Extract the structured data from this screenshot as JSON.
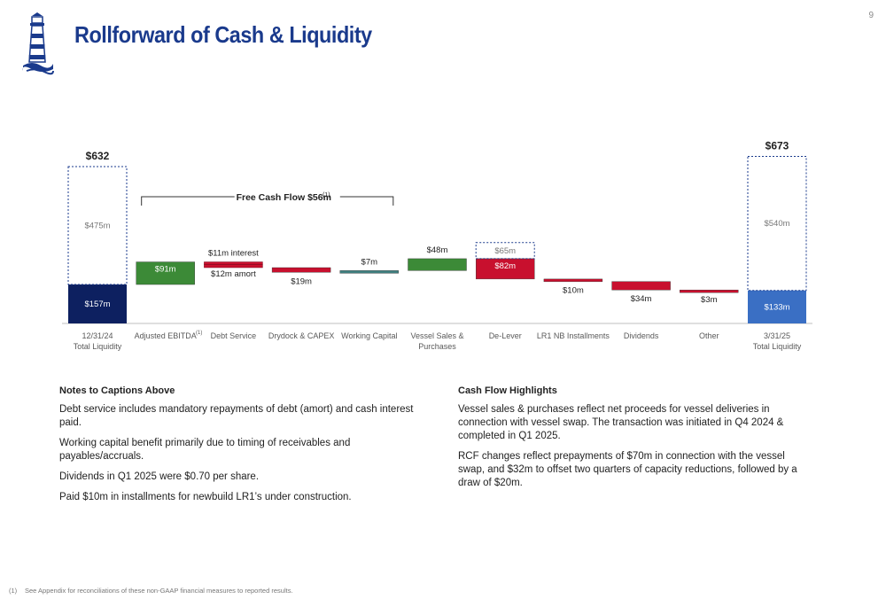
{
  "page_number": "9",
  "title": "Rollforward of Cash & Liquidity",
  "chart_data": {
    "type": "waterfall",
    "unit": "$m",
    "categories": [
      {
        "line1": "12/31/24",
        "line2": "Total Liquidity"
      },
      {
        "line1": "Adjusted EBITDA",
        "sup": "(1)"
      },
      {
        "line1": "Debt Service"
      },
      {
        "line1": "Drydock & CAPEX"
      },
      {
        "line1": "Working Capital"
      },
      {
        "line1": "Vessel Sales &",
        "line2": "Purchases"
      },
      {
        "line1": "De-Lever"
      },
      {
        "line1": "LR1 NB Installments"
      },
      {
        "line1": "Dividends"
      },
      {
        "line1": "Other"
      },
      {
        "line1": "3/31/25",
        "line2": "Total Liquidity"
      }
    ],
    "start": {
      "total": 632,
      "total_label": "$632",
      "cash": 157,
      "cash_label": "$157m",
      "rcf": 475,
      "rcf_label": "$475m"
    },
    "end": {
      "total": 673,
      "total_label": "$673",
      "cash": 133,
      "cash_label": "$133m",
      "rcf": 540,
      "rcf_label": "$540m"
    },
    "steps": [
      {
        "index": 1,
        "value": 91,
        "label": "$91m",
        "color": "green"
      },
      {
        "index": 2,
        "value": -23,
        "parts": [
          {
            "value": -11,
            "label": "$11m interest"
          },
          {
            "value": -12,
            "label": "$12m amort"
          }
        ],
        "color": "red"
      },
      {
        "index": 3,
        "value": -19,
        "label": "$19m",
        "color": "red"
      },
      {
        "index": 4,
        "value": 7,
        "label": "$7m",
        "color": "teal"
      },
      {
        "index": 5,
        "value": 48,
        "label": "$48m",
        "color": "green"
      },
      {
        "index": 6,
        "value": -82,
        "label": "$82m",
        "color": "red",
        "rcf_value": 65,
        "rcf_label": "$65m"
      },
      {
        "index": 7,
        "value": -10,
        "label": "$10m",
        "color": "red"
      },
      {
        "index": 8,
        "value": -34,
        "label": "$34m",
        "color": "red"
      },
      {
        "index": 9,
        "value": -3,
        "label": "$3m",
        "color": "red"
      }
    ],
    "bracket": {
      "label": "Free Cash Flow  $56m",
      "sup": "(1)",
      "from_index": 1,
      "to_index": 4
    },
    "ylim": [
      0,
      720
    ],
    "colors": {
      "cash_start": "#0d2060",
      "cash_end": "#3a6fc4",
      "green": "#3c8a37",
      "red": "#c8102e",
      "teal": "#3f7f7f",
      "dotted_border": "#1a3a8c"
    }
  },
  "notes": {
    "heading": "Notes to Captions Above",
    "items": [
      "Debt service includes mandatory repayments of debt (amort) and cash interest paid.",
      "Working capital benefit primarily due to timing of receivables and payables/accruals.",
      "Dividends in Q1 2025 were $0.70 per share.",
      "Paid $10m in installments for newbuild LR1’s under construction."
    ]
  },
  "highlights": {
    "heading": "Cash Flow Highlights",
    "items": [
      "Vessel sales & purchases reflect net proceeds for vessel deliveries in connection with vessel swap. The transaction was initiated in Q4 2024 & completed in Q1 2025.",
      "RCF changes reflect prepayments of $70m in connection with the vessel swap, and $32m to offset two quarters of capacity reductions, followed by a draw of $20m."
    ]
  },
  "footnote": {
    "num": "(1)",
    "text": "See Appendix for reconciliations of these non-GAAP financial measures to reported results."
  }
}
